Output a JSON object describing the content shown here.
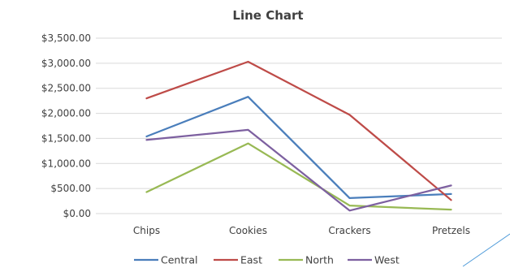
{
  "chart_data": {
    "type": "line",
    "title": "Line Chart",
    "categories": [
      "Chips",
      "Cookies",
      "Crackers",
      "Pretzels"
    ],
    "series": [
      {
        "name": "Central",
        "values": [
          1540,
          2330,
          310,
          390
        ],
        "color": "#4a7ebb"
      },
      {
        "name": "East",
        "values": [
          2300,
          3030,
          1970,
          270
        ],
        "color": "#be4b48"
      },
      {
        "name": "North",
        "values": [
          430,
          1400,
          160,
          80
        ],
        "color": "#98b954"
      },
      {
        "name": "West",
        "values": [
          1470,
          1670,
          60,
          560
        ],
        "color": "#7d60a0"
      }
    ],
    "y_ticks": [
      "$0.00",
      "$500.00",
      "$1,000.00",
      "$1,500.00",
      "$2,000.00",
      "$2,500.00",
      "$3,000.00",
      "$3,500.00"
    ],
    "ylim": [
      0,
      3500
    ],
    "grid": true,
    "legend_position": "bottom",
    "gridline_color": "#d9d9d9",
    "decoration_line_color": "#4f9bd9"
  }
}
